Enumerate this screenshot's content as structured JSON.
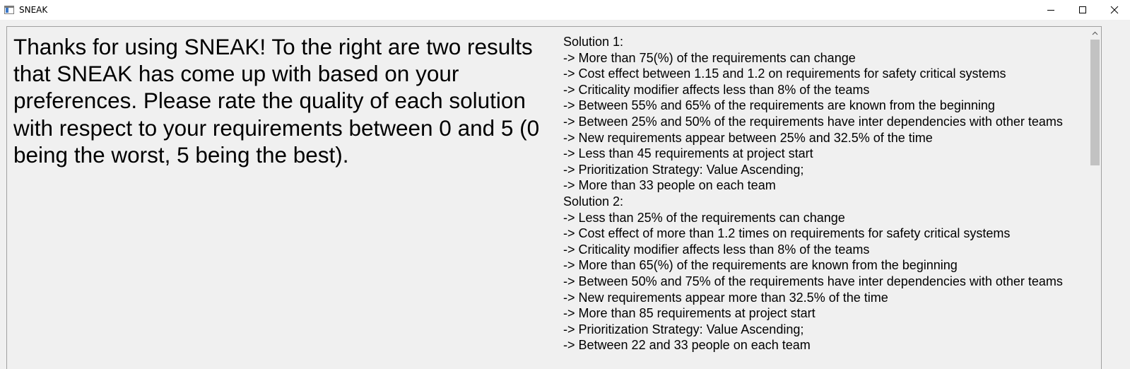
{
  "window": {
    "title": "SNEAK",
    "icon": "app-window-icon",
    "controls": [
      "minimize-icon",
      "maximize-icon",
      "close-icon"
    ]
  },
  "instructions": "Thanks for using SNEAK! To the right are two results that SNEAK has come up with based on your preferences. Please rate the quality of each solution with respect to your requirements between 0 and 5 (0 being the worst, 5 being the best).",
  "solutions": [
    {
      "title": "Solution 1:",
      "items": [
        "-> More than 75(%) of the requirements can change",
        "-> Cost effect between 1.15 and 1.2 on requirements for safety critical systems",
        "-> Criticality modifier affects less than 8% of the teams",
        "-> Between 55% and 65% of the requirements are known from the beginning",
        "-> Between 25% and 50% of the requirements have inter dependencies with other teams",
        "-> New requirements appear between 25% and 32.5% of the time",
        "-> Less than 45 requirements at project start",
        "-> Prioritization Strategy: Value Ascending;",
        "-> More than 33 people on each team"
      ]
    },
    {
      "title": "Solution 2:",
      "items": [
        "-> Less than 25% of the requirements can change",
        "-> Cost effect of more than 1.2 times on requirements for safety critical systems",
        "-> Criticality modifier affects less than 8% of the teams",
        "-> More than 65(%) of the requirements are known from the beginning",
        "-> Between 50% and 75% of the requirements have inter dependencies with other teams",
        "-> New requirements appear more than 32.5% of the time",
        "-> More than 85 requirements at project start",
        "-> Prioritization Strategy: Value Ascending;",
        "-> Between 22 and 33 people on each team"
      ]
    }
  ]
}
